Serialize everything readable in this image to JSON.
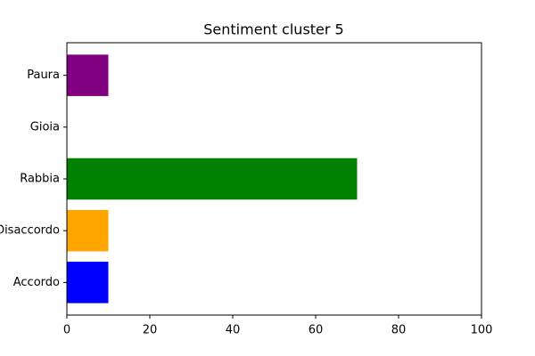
{
  "chart_data": {
    "type": "barh",
    "title": "Sentiment cluster 5",
    "categories": [
      "Accordo",
      "Disaccordo",
      "Rabbia",
      "Gioia",
      "Paura"
    ],
    "values": [
      10,
      10,
      70,
      0,
      10
    ],
    "colors": [
      "blue",
      "orange",
      "green",
      "red",
      "purple"
    ],
    "xlim": [
      0,
      100
    ],
    "xticks": [
      0,
      20,
      40,
      60,
      80,
      100
    ],
    "grid": false
  }
}
